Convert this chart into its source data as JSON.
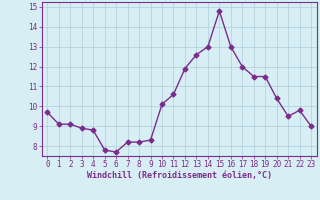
{
  "x": [
    0,
    1,
    2,
    3,
    4,
    5,
    6,
    7,
    8,
    9,
    10,
    11,
    12,
    13,
    14,
    15,
    16,
    17,
    18,
    19,
    20,
    21,
    22,
    23
  ],
  "y": [
    9.7,
    9.1,
    9.1,
    8.9,
    8.8,
    7.8,
    7.7,
    8.2,
    8.2,
    8.3,
    10.1,
    10.6,
    11.9,
    12.6,
    13.0,
    14.8,
    13.0,
    12.0,
    11.5,
    11.5,
    10.4,
    9.5,
    9.8,
    9.0
  ],
  "line_color": "#7B2D8B",
  "marker": "D",
  "marker_size": 2.5,
  "bg_color": "#d7eef4",
  "grid_color": "#b5d4de",
  "xlabel": "Windchill (Refroidissement éolien,°C)",
  "ylim": [
    7.5,
    15.25
  ],
  "xlim": [
    -0.5,
    23.5
  ],
  "yticks": [
    8,
    9,
    10,
    11,
    12,
    13,
    14,
    15
  ],
  "xticks": [
    0,
    1,
    2,
    3,
    4,
    5,
    6,
    7,
    8,
    9,
    10,
    11,
    12,
    13,
    14,
    15,
    16,
    17,
    18,
    19,
    20,
    21,
    22,
    23
  ],
  "tick_color": "#7B2D8B",
  "label_color": "#7B2D8B",
  "tick_fontsize": 5.5,
  "xlabel_fontsize": 6.0,
  "linewidth": 1.0
}
